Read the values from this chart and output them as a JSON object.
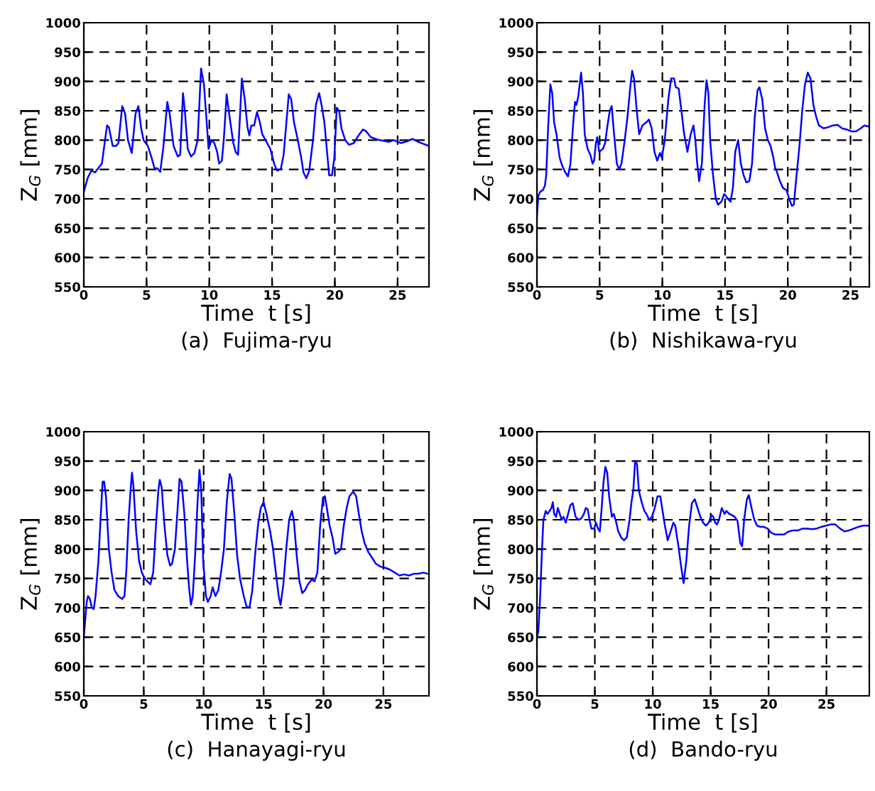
{
  "chart_data": [
    {
      "type": "line",
      "title": "(a)  Fujima-ryu",
      "xlabel": "Time  t [s]",
      "ylabel": "Z$_{G}$ [mm]",
      "xlim": [
        0,
        27.5
      ],
      "ylim": [
        550,
        1000
      ],
      "xticks": [
        0,
        5,
        10,
        15,
        20,
        25
      ],
      "yticks": [
        550,
        600,
        650,
        700,
        750,
        800,
        850,
        900,
        950,
        1000
      ],
      "grid": true,
      "marker": "none",
      "line_style": "solid",
      "series": [
        {
          "color": "#0000ff",
          "x": [
            0,
            0.3,
            0.6,
            0.9,
            1.25,
            1.44,
            1.63,
            1.85,
            2.0,
            2.3,
            2.57,
            2.76,
            3.06,
            3.29,
            3.52,
            3.82,
            4.12,
            4.35,
            4.57,
            4.76,
            5.1,
            5.4,
            5.63,
            5.86,
            6.09,
            6.35,
            6.65,
            6.84,
            7.15,
            7.49,
            7.68,
            7.9,
            8.05,
            8.28,
            8.54,
            8.81,
            9.07,
            9.34,
            9.57,
            9.79,
            9.94,
            10.17,
            10.4,
            10.62,
            10.78,
            11.0,
            11.15,
            11.38,
            11.61,
            11.91,
            12.1,
            12.29,
            12.59,
            12.82,
            13.04,
            13.19,
            13.35,
            13.57,
            13.8,
            14.03,
            14.22,
            14.48,
            14.86,
            15.16,
            15.39,
            15.69,
            15.92,
            16.22,
            16.33,
            16.52,
            16.75,
            17.05,
            17.32,
            17.5,
            17.73,
            17.96,
            18.26,
            18.49,
            18.75,
            18.94,
            19.17,
            19.4,
            19.55,
            19.77,
            19.96,
            20.15,
            20.34,
            20.53,
            20.83,
            21.13,
            21.51,
            21.89,
            22.23,
            22.5,
            22.87,
            23.55,
            24.31,
            24.69,
            25.26,
            25.75,
            26.2,
            26.65,
            27.5
          ],
          "values": [
            712,
            735,
            748,
            745,
            755,
            760,
            790,
            825,
            822,
            790,
            790,
            795,
            858,
            845,
            800,
            778,
            845,
            858,
            820,
            800,
            790,
            770,
            752,
            752,
            746,
            790,
            865,
            845,
            790,
            772,
            775,
            880,
            850,
            785,
            772,
            778,
            800,
            922,
            895,
            830,
            785,
            800,
            795,
            780,
            760,
            765,
            800,
            878,
            840,
            795,
            780,
            775,
            905,
            870,
            822,
            808,
            825,
            825,
            848,
            830,
            810,
            800,
            785,
            760,
            748,
            750,
            775,
            850,
            878,
            870,
            830,
            800,
            770,
            745,
            735,
            748,
            800,
            860,
            880,
            860,
            830,
            775,
            740,
            740,
            770,
            855,
            850,
            820,
            800,
            792,
            795,
            808,
            818,
            815,
            805,
            800,
            797,
            800,
            795,
            798,
            802,
            797,
            790
          ]
        }
      ]
    },
    {
      "type": "line",
      "title": "(b)  Nishikawa-ryu",
      "xlabel": "Time  t [s]",
      "ylabel": "Z$_{G}$ [mm]",
      "xlim": [
        0,
        26.5
      ],
      "ylim": [
        550,
        1000
      ],
      "xticks": [
        0,
        5,
        10,
        15,
        20,
        25
      ],
      "yticks": [
        550,
        600,
        650,
        700,
        750,
        800,
        850,
        900,
        950,
        1000
      ],
      "grid": true,
      "marker": "none",
      "line_style": "solid",
      "series": [
        {
          "color": "#0000ff",
          "x": [
            0,
            0.11,
            0.26,
            0.48,
            0.63,
            0.74,
            0.89,
            1.07,
            1.22,
            1.37,
            1.56,
            1.81,
            2.04,
            2.26,
            2.48,
            2.67,
            2.93,
            3.04,
            3.15,
            3.3,
            3.52,
            3.67,
            3.81,
            4.04,
            4.26,
            4.44,
            4.56,
            4.7,
            4.81,
            4.96,
            5.26,
            5.44,
            5.59,
            5.81,
            5.96,
            6.11,
            6.37,
            6.56,
            6.74,
            7.0,
            7.22,
            7.44,
            7.59,
            7.74,
            7.96,
            8.15,
            8.41,
            8.7,
            8.93,
            9.15,
            9.37,
            9.59,
            9.81,
            9.96,
            10.19,
            10.48,
            10.7,
            10.93,
            11.07,
            11.3,
            11.52,
            11.74,
            12.0,
            12.26,
            12.48,
            12.63,
            12.78,
            12.93,
            13.15,
            13.37,
            13.52,
            13.67,
            13.81,
            14.04,
            14.26,
            14.44,
            14.7,
            14.93,
            15.07,
            15.22,
            15.44,
            15.63,
            15.81,
            16.04,
            16.26,
            16.48,
            16.7,
            16.93,
            17.15,
            17.37,
            17.59,
            17.74,
            17.96,
            18.19,
            18.41,
            18.63,
            18.85,
            19.0,
            19.15,
            19.37,
            19.63,
            19.89,
            20.11,
            20.33,
            20.48,
            20.7,
            20.93,
            21.15,
            21.37,
            21.59,
            21.81,
            22.04,
            22.26,
            22.48,
            22.85,
            23.22,
            23.59,
            23.96,
            24.33,
            24.7,
            25.07,
            25.44,
            25.81,
            26.11,
            26.48
          ],
          "values": [
            670,
            705,
            712,
            715,
            722,
            740,
            820,
            895,
            880,
            830,
            810,
            770,
            755,
            745,
            738,
            760,
            840,
            865,
            860,
            875,
            915,
            880,
            810,
            785,
            775,
            760,
            765,
            795,
            805,
            780,
            785,
            795,
            820,
            850,
            858,
            820,
            760,
            750,
            760,
            800,
            840,
            890,
            918,
            905,
            850,
            810,
            825,
            830,
            835,
            820,
            780,
            765,
            778,
            770,
            800,
            870,
            905,
            905,
            890,
            888,
            850,
            810,
            780,
            810,
            825,
            800,
            760,
            730,
            760,
            860,
            902,
            880,
            800,
            740,
            700,
            690,
            695,
            708,
            705,
            700,
            695,
            720,
            780,
            800,
            760,
            740,
            728,
            730,
            760,
            840,
            885,
            890,
            870,
            820,
            800,
            790,
            770,
            752,
            745,
            730,
            718,
            715,
            700,
            688,
            690,
            740,
            790,
            850,
            895,
            915,
            905,
            860,
            840,
            825,
            820,
            822,
            825,
            826,
            820,
            818,
            815,
            815,
            820,
            825,
            823
          ]
        }
      ]
    },
    {
      "type": "line",
      "title": "(c)  Hanayagi-ryu",
      "xlabel": "Time  t [s]",
      "ylabel": "Z$_{G}$ [mm]",
      "xlim": [
        0,
        28.8
      ],
      "ylim": [
        550,
        1000
      ],
      "xticks": [
        0,
        5,
        10,
        15,
        20,
        25
      ],
      "yticks": [
        550,
        600,
        650,
        700,
        750,
        800,
        850,
        900,
        950,
        1000
      ],
      "grid": true,
      "marker": "none",
      "line_style": "solid",
      "series": [
        {
          "color": "#0000ff",
          "x": [
            0,
            0.12,
            0.24,
            0.35,
            0.51,
            0.67,
            0.83,
            0.98,
            1.22,
            1.42,
            1.57,
            1.69,
            1.85,
            2.09,
            2.32,
            2.56,
            2.87,
            3.19,
            3.39,
            3.54,
            3.74,
            3.9,
            4.02,
            4.13,
            4.37,
            4.61,
            4.84,
            5.08,
            5.31,
            5.55,
            5.79,
            6.02,
            6.22,
            6.34,
            6.5,
            6.73,
            6.97,
            7.2,
            7.36,
            7.6,
            7.83,
            7.99,
            8.15,
            8.39,
            8.62,
            8.78,
            8.94,
            9.09,
            9.29,
            9.49,
            9.65,
            9.8,
            9.96,
            10.19,
            10.35,
            10.59,
            10.75,
            10.98,
            11.22,
            11.45,
            11.69,
            11.93,
            12.17,
            12.32,
            12.56,
            12.79,
            13.03,
            13.35,
            13.58,
            13.82,
            14.06,
            14.29,
            14.53,
            14.76,
            15.0,
            15.24,
            15.55,
            15.79,
            16.02,
            16.26,
            16.42,
            16.65,
            16.89,
            17.13,
            17.36,
            17.52,
            17.76,
            17.99,
            18.23,
            18.46,
            18.7,
            19.02,
            19.25,
            19.49,
            19.72,
            19.96,
            20.12,
            20.28,
            20.51,
            20.75,
            20.98,
            21.22,
            21.46,
            21.69,
            21.93,
            22.16,
            22.48,
            22.72,
            22.95,
            23.19,
            23.43,
            23.74,
            24.06,
            24.37,
            24.76,
            25.16,
            25.55,
            25.94,
            26.34,
            26.73,
            27.13,
            27.52,
            27.91,
            28.31,
            28.7
          ],
          "values": [
            650,
            680,
            710,
            720,
            715,
            700,
            698,
            720,
            780,
            860,
            915,
            915,
            890,
            800,
            760,
            730,
            720,
            715,
            720,
            760,
            850,
            900,
            930,
            910,
            830,
            780,
            760,
            750,
            745,
            740,
            760,
            840,
            900,
            918,
            905,
            840,
            790,
            772,
            775,
            800,
            870,
            920,
            915,
            860,
            780,
            735,
            705,
            720,
            790,
            880,
            935,
            900,
            780,
            720,
            710,
            720,
            735,
            720,
            730,
            760,
            800,
            880,
            928,
            920,
            860,
            790,
            750,
            720,
            702,
            700,
            730,
            790,
            840,
            870,
            880,
            860,
            830,
            800,
            760,
            720,
            705,
            740,
            800,
            850,
            865,
            850,
            790,
            745,
            725,
            730,
            740,
            748,
            745,
            760,
            840,
            888,
            890,
            870,
            840,
            820,
            792,
            795,
            800,
            840,
            870,
            890,
            898,
            890,
            860,
            830,
            810,
            795,
            785,
            775,
            770,
            768,
            765,
            760,
            755,
            757,
            755,
            758,
            758,
            760,
            758
          ]
        }
      ]
    },
    {
      "type": "line",
      "title": "(d)  Bando-ryu",
      "xlabel": "Time  t [s]",
      "ylabel": "Z$_{G}$ [mm]",
      "xlim": [
        0,
        28.7
      ],
      "ylim": [
        550,
        1000
      ],
      "xticks": [
        0,
        5,
        10,
        15,
        20,
        25
      ],
      "yticks": [
        550,
        600,
        650,
        700,
        750,
        800,
        850,
        900,
        950,
        1000
      ],
      "grid": true,
      "marker": "none",
      "line_style": "solid",
      "series": [
        {
          "color": "#0000ff",
          "x": [
            0,
            0.12,
            0.28,
            0.44,
            0.56,
            0.76,
            0.92,
            1.09,
            1.25,
            1.37,
            1.49,
            1.65,
            1.81,
            1.97,
            2.13,
            2.29,
            2.49,
            2.69,
            2.89,
            3.09,
            3.34,
            3.58,
            3.82,
            4.06,
            4.22,
            4.38,
            4.54,
            4.7,
            4.94,
            5.1,
            5.27,
            5.43,
            5.59,
            5.75,
            5.91,
            6.07,
            6.23,
            6.47,
            6.63,
            6.79,
            7.03,
            7.27,
            7.52,
            7.76,
            8.0,
            8.16,
            8.32,
            8.48,
            8.64,
            8.8,
            9.04,
            9.28,
            9.45,
            9.69,
            9.93,
            10.17,
            10.41,
            10.65,
            10.81,
            11.05,
            11.29,
            11.54,
            11.78,
            11.94,
            12.18,
            12.42,
            12.66,
            12.9,
            13.14,
            13.38,
            13.63,
            13.87,
            14.11,
            14.35,
            14.59,
            14.83,
            15.07,
            15.23,
            15.39,
            15.55,
            15.72,
            15.96,
            16.2,
            16.36,
            16.6,
            16.84,
            17.08,
            17.32,
            17.56,
            17.72,
            17.89,
            18.13,
            18.29,
            18.53,
            18.77,
            19.01,
            19.25,
            19.57,
            19.9,
            20.22,
            20.54,
            20.94,
            21.34,
            21.74,
            22.15,
            22.55,
            22.95,
            23.35,
            23.75,
            24.16,
            24.56,
            24.96,
            25.36,
            25.76,
            26.17,
            26.57,
            26.97,
            27.37,
            27.77,
            28.17,
            28.66
          ],
          "values": [
            650,
            660,
            720,
            800,
            850,
            865,
            860,
            865,
            870,
            880,
            860,
            855,
            870,
            860,
            850,
            855,
            845,
            860,
            875,
            878,
            855,
            850,
            852,
            860,
            870,
            868,
            850,
            835,
            835,
            845,
            835,
            830,
            870,
            915,
            940,
            930,
            890,
            855,
            860,
            850,
            830,
            820,
            815,
            820,
            850,
            880,
            900,
            950,
            945,
            900,
            880,
            865,
            860,
            850,
            855,
            870,
            890,
            890,
            870,
            840,
            815,
            830,
            845,
            840,
            810,
            775,
            742,
            780,
            840,
            878,
            885,
            870,
            855,
            845,
            840,
            845,
            858,
            855,
            845,
            842,
            850,
            870,
            860,
            865,
            860,
            858,
            855,
            848,
            810,
            805,
            850,
            885,
            892,
            870,
            850,
            840,
            838,
            838,
            835,
            828,
            825,
            825,
            825,
            830,
            832,
            832,
            835,
            835,
            834,
            835,
            838,
            840,
            842,
            842,
            835,
            830,
            832,
            835,
            838,
            840,
            840
          ]
        }
      ]
    }
  ]
}
